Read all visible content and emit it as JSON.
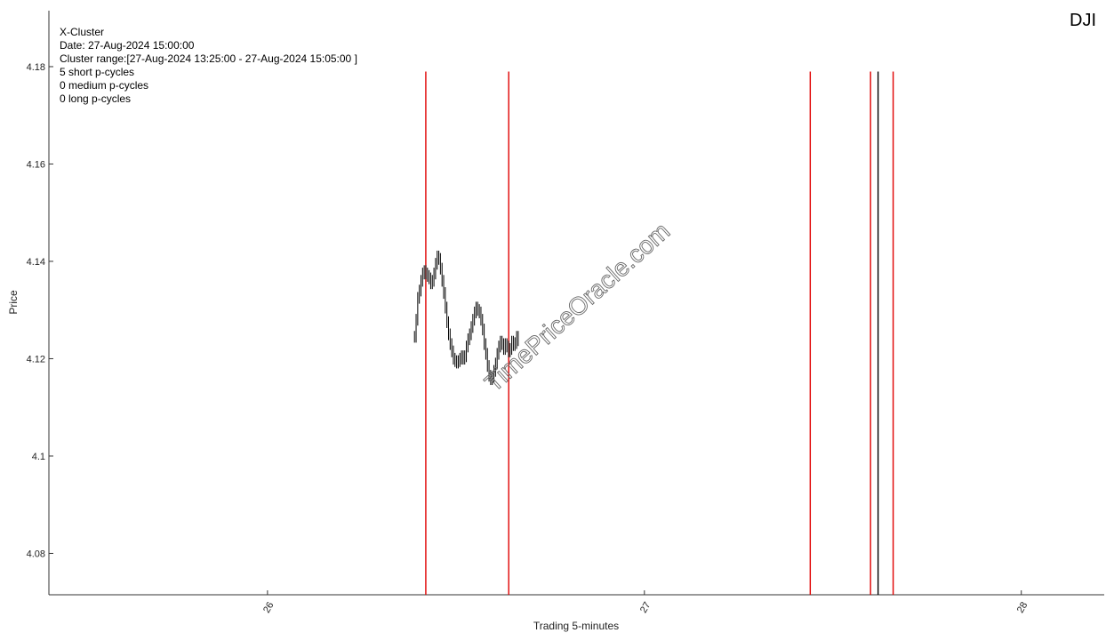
{
  "chart_data": {
    "type": "line",
    "symbol": "DJI",
    "xlabel": "Trading 5-minutes",
    "ylabel": "Price",
    "xlim": [
      25.42,
      28.22
    ],
    "ylim": [
      4.0715,
      4.1915
    ],
    "x_ticks": [
      26,
      27,
      28
    ],
    "y_ticks": [
      4.08,
      4.1,
      4.12,
      4.14,
      4.16,
      4.18
    ],
    "y_tick_labels": [
      "4.08",
      "4.1",
      "4.12",
      "4.14",
      "4.16",
      "4.18"
    ],
    "grid": false,
    "info": [
      "X-Cluster",
      "Date: 27-Aug-2024 15:00:00",
      "Cluster range:[27-Aug-2024 13:25:00 - 27-Aug-2024 15:05:00 ]",
      "5 short p-cycles",
      "0 medium p-cycles",
      "0 long p-cycles"
    ],
    "watermark": "TimePriceOracle.com",
    "cycle_lines": {
      "color": "#e00000",
      "x": [
        26.42,
        26.64,
        27.44,
        27.6,
        27.66
      ],
      "y_top": 4.179
    },
    "current_line": {
      "color": "#000000",
      "x": 27.62,
      "y_top": 4.179
    },
    "price_series": {
      "color": "#000000",
      "x_start": 26.39,
      "x_step": 0.0043,
      "close": [
        4.1245,
        4.128,
        4.1325,
        4.134,
        4.136,
        4.1375,
        4.138,
        4.1375,
        4.137,
        4.1365,
        4.1355,
        4.136,
        4.1375,
        4.1395,
        4.141,
        4.1405,
        4.1385,
        4.136,
        4.1335,
        4.1305,
        4.1275,
        4.125,
        4.123,
        4.1215,
        4.12,
        4.1195,
        4.1192,
        4.1195,
        4.12,
        4.1205,
        4.12,
        4.1205,
        4.1225,
        4.124,
        4.125,
        4.1265,
        4.128,
        4.1295,
        4.1305,
        4.13,
        4.1295,
        4.128,
        4.126,
        4.123,
        4.121,
        4.1185,
        4.1165,
        4.1158,
        4.1162,
        4.1175,
        4.119,
        4.121,
        4.1225,
        4.1235,
        4.123,
        4.122,
        4.123,
        4.1225,
        4.1215,
        4.122,
        4.1235,
        4.1228,
        4.1232,
        4.1245,
        4.1238
      ]
    }
  }
}
